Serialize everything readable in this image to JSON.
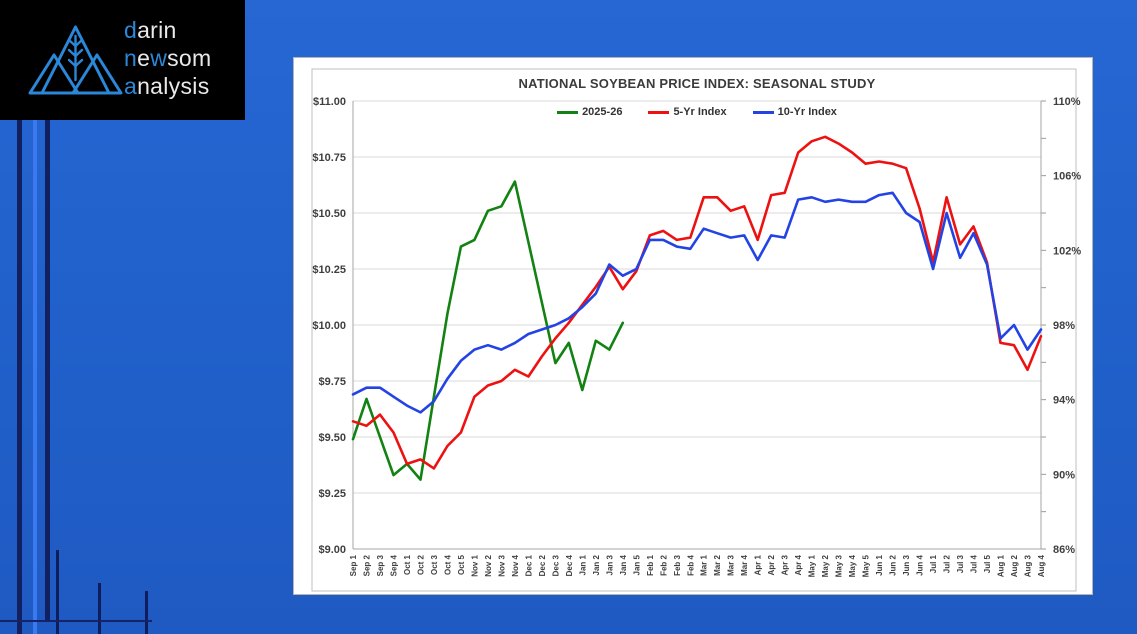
{
  "logo": {
    "accent_color": "#2b87d8",
    "text_color": "#e9e9e9",
    "icon": "mountains-wheat-icon",
    "lines": [
      [
        [
          "d",
          "accent"
        ],
        [
          "arin",
          "text"
        ]
      ],
      [
        [
          "n",
          "accent"
        ],
        [
          "e",
          "text"
        ],
        [
          "w",
          "accent"
        ],
        [
          "som",
          "text"
        ]
      ],
      [
        [
          "a",
          "accent"
        ],
        [
          "nalysis",
          "text"
        ]
      ]
    ]
  },
  "chart_data": {
    "type": "line",
    "title": "NATIONAL SOYBEAN PRICE INDEX: SEASONAL STUDY",
    "legend_position": "top",
    "grid": "horizontal",
    "categories": [
      "Sep 1",
      "Sep 2",
      "Sep 3",
      "Sep 4",
      "Oct 1",
      "Oct 2",
      "Oct 3",
      "Oct 4",
      "Oct 5",
      "Nov 1",
      "Nov 2",
      "Nov 3",
      "Nov 4",
      "Dec 1",
      "Dec 2",
      "Dec 3",
      "Dec 4",
      "Jan 1",
      "Jan 2",
      "Jan 3",
      "Jan 4",
      "Jan 5",
      "Feb 1",
      "Feb 2",
      "Feb 3",
      "Feb 4",
      "Mar 1",
      "Mar 2",
      "Mar 3",
      "Mar 4",
      "Apr 1",
      "Apr 2",
      "Apr 3",
      "Apr 4",
      "May 1",
      "May 2",
      "May 3",
      "May 4",
      "May 5",
      "Jun 1",
      "Jun 2",
      "Jun 3",
      "Jun 4",
      "Jul 1",
      "Jul 2",
      "Jul 3",
      "Jul 4",
      "Jul 5",
      "Aug 1",
      "Aug 2",
      "Aug 3",
      "Aug 4"
    ],
    "series": [
      {
        "name": "2025-26",
        "color": "#128212",
        "values": [
          9.49,
          9.67,
          9.5,
          9.33,
          9.38,
          9.31,
          9.68,
          10.05,
          10.35,
          10.38,
          10.51,
          10.53,
          10.64,
          10.37,
          10.1,
          9.83,
          9.92,
          9.71,
          9.93,
          9.89,
          10.01
        ]
      },
      {
        "name": "5-Yr Index",
        "color": "#ee1111",
        "values": [
          9.57,
          9.55,
          9.6,
          9.52,
          9.38,
          9.4,
          9.36,
          9.46,
          9.52,
          9.68,
          9.73,
          9.75,
          9.8,
          9.77,
          9.86,
          9.94,
          10.01,
          10.09,
          10.17,
          10.26,
          10.16,
          10.24,
          10.4,
          10.42,
          10.38,
          10.39,
          10.57,
          10.57,
          10.51,
          10.53,
          10.38,
          10.58,
          10.59,
          10.77,
          10.82,
          10.84,
          10.81,
          10.77,
          10.72,
          10.73,
          10.72,
          10.7,
          10.52,
          10.28,
          10.57,
          10.36,
          10.44,
          10.28,
          9.92,
          9.91,
          9.8,
          9.95
        ]
      },
      {
        "name": "10-Yr Index",
        "color": "#2443e4",
        "values": [
          9.69,
          9.72,
          9.72,
          9.68,
          9.64,
          9.61,
          9.66,
          9.76,
          9.84,
          9.89,
          9.91,
          9.89,
          9.92,
          9.96,
          9.98,
          10.0,
          10.03,
          10.08,
          10.14,
          10.27,
          10.22,
          10.25,
          10.38,
          10.38,
          10.35,
          10.34,
          10.43,
          10.41,
          10.39,
          10.4,
          10.29,
          10.4,
          10.39,
          10.56,
          10.57,
          10.55,
          10.56,
          10.55,
          10.55,
          10.58,
          10.59,
          10.5,
          10.46,
          10.25,
          10.5,
          10.3,
          10.41,
          10.27,
          9.94,
          10.0,
          9.89,
          9.98
        ]
      }
    ],
    "y_axis_left": {
      "min": 9.0,
      "max": 11.0,
      "step": 0.25,
      "labels": [
        "$11.00",
        "$10.75",
        "$10.50",
        "$10.25",
        "$10.00",
        "$9.75",
        "$9.50",
        "$9.25",
        "$9.00"
      ]
    },
    "y_axis_right": {
      "min": 86,
      "max": 110,
      "step": 4,
      "labels": [
        "110%",
        "106%",
        "102%",
        "98%",
        "94%",
        "90%",
        "86%"
      ]
    }
  }
}
